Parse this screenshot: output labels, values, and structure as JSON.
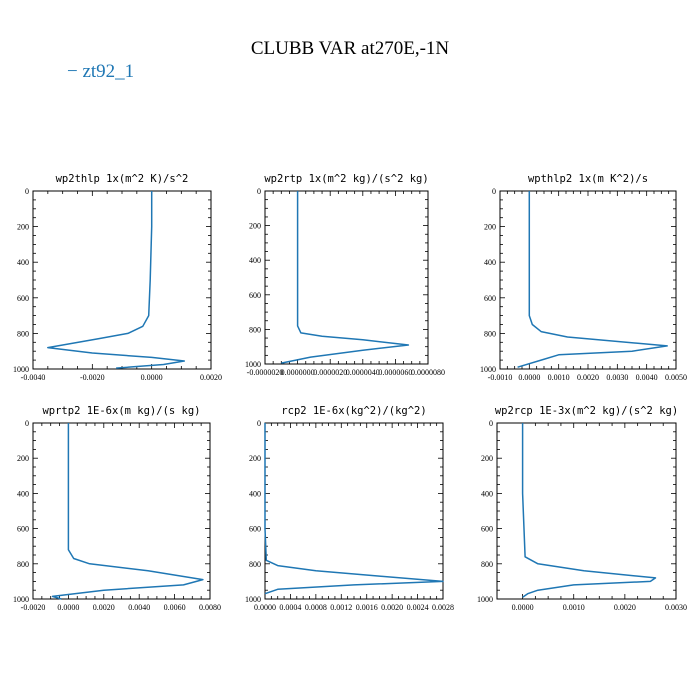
{
  "figure_title": "CLUBB VAR at270E,-1N",
  "legend_label": "− zt92_1",
  "series_color": "#1f77b4",
  "chart_data": [
    {
      "type": "line",
      "title": "wp2thlp   1x(m^2 K)/s^2",
      "xlim": [
        -0.004,
        0.002
      ],
      "ylim": [
        1000,
        0
      ],
      "xticks": [
        -0.004,
        -0.002,
        0.0,
        0.002
      ],
      "xtick_labels": [
        "-0.0040",
        "-0.0020",
        "0.0000",
        "0.0020"
      ],
      "yticks": [
        0,
        200,
        400,
        600,
        800,
        1000
      ],
      "ytick_labels": [
        "0",
        "200",
        "400",
        "600",
        "800",
        "1000"
      ],
      "series": [
        {
          "name": "zt92_1",
          "x": [
            0.0,
            0.0,
            -5e-05,
            -0.0001,
            -0.0003,
            -0.0008,
            -0.0018,
            -0.0035,
            -0.002,
            0.0,
            0.0011,
            0.0004,
            -0.0012
          ],
          "y": [
            0,
            200,
            500,
            700,
            760,
            800,
            830,
            880,
            910,
            935,
            955,
            975,
            995
          ]
        }
      ]
    },
    {
      "type": "line",
      "title": "wp2rtp   1x(m^2 kg)/(s^2 kg)",
      "xlim": [
        -2e-06,
        8e-06
      ],
      "ylim": [
        1000,
        0
      ],
      "xticks": [
        -2e-06,
        0.0,
        2e-06,
        4e-06,
        6e-06,
        8e-06
      ],
      "xtick_labels": [
        "-0.0000020",
        "0.0000000",
        "0.0000020",
        "0.0000040",
        "0.0000060",
        "0.0000080"
      ],
      "yticks": [
        0,
        200,
        400,
        600,
        800,
        1000
      ],
      "ytick_labels": [
        "0",
        "200",
        "400",
        "600",
        "800",
        "1000"
      ],
      "series": [
        {
          "name": "zt92_1",
          "x": [
            0.0,
            0.0,
            0.0,
            2e-07,
            1.5e-06,
            4e-06,
            6.8e-06,
            4e-06,
            8e-07,
            -1e-06
          ],
          "y": [
            0,
            400,
            780,
            820,
            840,
            860,
            890,
            920,
            960,
            995
          ]
        }
      ]
    },
    {
      "type": "line",
      "title": "wpthlp2   1x(m K^2)/s",
      "xlim": [
        -0.001,
        0.005
      ],
      "ylim": [
        1000,
        0
      ],
      "xticks": [
        -0.001,
        0.0,
        0.001,
        0.002,
        0.003,
        0.004,
        0.005
      ],
      "xtick_labels": [
        "-0.0010",
        "0.0000",
        "0.0010",
        "0.0020",
        "0.0030",
        "0.0040",
        "0.0050"
      ],
      "yticks": [
        0,
        200,
        400,
        600,
        800,
        1000
      ],
      "ytick_labels": [
        "0",
        "200",
        "400",
        "600",
        "800",
        "1000"
      ],
      "series": [
        {
          "name": "zt92_1",
          "x": [
            0.0,
            0.0,
            0.0,
            0.0001,
            0.0004,
            0.0013,
            0.0047,
            0.0035,
            0.001,
            0.0004,
            -0.0004
          ],
          "y": [
            0,
            400,
            700,
            750,
            790,
            820,
            870,
            900,
            920,
            950,
            990
          ]
        }
      ]
    },
    {
      "type": "line",
      "title": "wprtp2   1E-6x(m kg)/(s kg)",
      "xlim": [
        -0.002,
        0.008
      ],
      "ylim": [
        1000,
        0
      ],
      "xticks": [
        -0.002,
        0.0,
        0.002,
        0.004,
        0.006,
        0.008
      ],
      "xtick_labels": [
        "-0.0020",
        "0.0000",
        "0.0020",
        "0.0040",
        "0.0060",
        "0.0080"
      ],
      "yticks": [
        0,
        200,
        400,
        600,
        800,
        1000
      ],
      "ytick_labels": [
        "0",
        "200",
        "400",
        "600",
        "800",
        "1000"
      ],
      "series": [
        {
          "name": "zt92_1",
          "x": [
            0.0,
            0.0,
            0.0,
            0.0003,
            0.0012,
            0.0045,
            0.0076,
            0.0065,
            0.002,
            -0.0009,
            -0.0004
          ],
          "y": [
            0,
            400,
            720,
            770,
            800,
            840,
            890,
            920,
            950,
            985,
            1000
          ]
        }
      ]
    },
    {
      "type": "line",
      "title": "rcp2   1E-6x(kg^2)/(kg^2)",
      "xlim": [
        0.0,
        0.0028
      ],
      "ylim": [
        1000,
        0
      ],
      "xticks": [
        0.0,
        0.0004,
        0.0008,
        0.0012,
        0.0016,
        0.002,
        0.0024,
        0.0028
      ],
      "xtick_labels": [
        "0.0000",
        "0.0004",
        "0.0008",
        "0.0012",
        "0.0016",
        "0.0020",
        "0.0024",
        "0.0028"
      ],
      "yticks": [
        0,
        200,
        400,
        600,
        800,
        1000
      ],
      "ytick_labels": [
        "0",
        "200",
        "400",
        "600",
        "800",
        "1000"
      ],
      "series": [
        {
          "name": "zt92_1",
          "x": [
            0.0,
            0.0,
            2e-05,
            0.0002,
            0.0008,
            0.0018,
            0.0028,
            0.0014,
            0.0002,
            0.0
          ],
          "y": [
            0,
            600,
            780,
            810,
            840,
            870,
            900,
            920,
            945,
            970
          ]
        }
      ]
    },
    {
      "type": "line",
      "title": "wp2rcp   1E-3x(m^2 kg)/(s^2 kg)",
      "xlim": [
        -0.0005,
        0.003
      ],
      "ylim": [
        1000,
        0
      ],
      "xticks": [
        0.0,
        0.001,
        0.002,
        0.003
      ],
      "xtick_labels": [
        "0.0000",
        "0.0010",
        "0.0020",
        "0.0030"
      ],
      "yticks": [
        0,
        200,
        400,
        600,
        800,
        1000
      ],
      "ytick_labels": [
        "0",
        "200",
        "400",
        "600",
        "800",
        "1000"
      ],
      "series": [
        {
          "name": "zt92_1",
          "x": [
            0.0,
            0.0,
            5e-05,
            0.0003,
            0.0012,
            0.0026,
            0.0025,
            0.001,
            0.0003,
            0.0001,
            0.0
          ],
          "y": [
            0,
            400,
            760,
            800,
            840,
            880,
            900,
            920,
            950,
            970,
            990
          ]
        }
      ]
    }
  ]
}
